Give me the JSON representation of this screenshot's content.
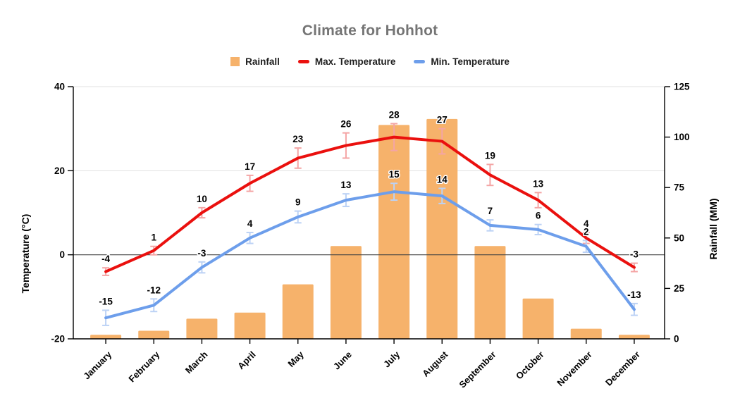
{
  "chart": {
    "title": "Climate for Hohhot",
    "title_color": "#757575",
    "legend": [
      {
        "label": "Rainfall",
        "marker": "square",
        "color": "#f6b26b"
      },
      {
        "label": "Max. Temperature",
        "marker": "line",
        "color": "#ea100e"
      },
      {
        "label": "Min. Temperature",
        "marker": "line",
        "color": "#6d9eeb"
      }
    ]
  },
  "chart_data": {
    "type": "combo",
    "title": "Climate for Hohhot",
    "categories": [
      "January",
      "February",
      "March",
      "April",
      "May",
      "June",
      "July",
      "August",
      "September",
      "October",
      "November",
      "December"
    ],
    "series": [
      {
        "name": "Rainfall",
        "type": "bar",
        "axis": "right",
        "color": "#f6b26b",
        "values": [
          2,
          4,
          10,
          13,
          27,
          46,
          106,
          109,
          46,
          20,
          5,
          2
        ]
      },
      {
        "name": "Max. Temperature",
        "type": "line",
        "axis": "left",
        "color": "#ea100e",
        "error_color": "#f4a5a5",
        "values": [
          -4,
          1,
          10,
          17,
          23,
          26,
          28,
          27,
          19,
          13,
          4,
          -3
        ],
        "errors": [
          0.9,
          1.0,
          1.2,
          1.9,
          2.4,
          3.0,
          3.2,
          3.0,
          2.5,
          1.8,
          1.3,
          1.0
        ],
        "data_labels_shown": true
      },
      {
        "name": "Min. Temperature",
        "type": "line",
        "axis": "left",
        "color": "#6d9eeb",
        "error_color": "#bcd2f5",
        "values": [
          -15,
          -12,
          -3,
          4,
          9,
          13,
          15,
          14,
          7,
          6,
          2,
          -13
        ],
        "errors": [
          1.8,
          1.5,
          1.3,
          1.3,
          1.4,
          1.5,
          2.0,
          1.8,
          1.3,
          1.2,
          1.4,
          1.4
        ],
        "data_labels_shown": true
      }
    ],
    "left_axis": {
      "title": "Temperature (°C)",
      "min": -20,
      "max": 40,
      "ticks": [
        40,
        20,
        0,
        -20
      ]
    },
    "right_axis": {
      "title": "Rainfall (MM)",
      "min": 0,
      "max": 125,
      "ticks": [
        125,
        100,
        75,
        50,
        25,
        0
      ]
    },
    "layout_hints": {
      "legend_position": "top",
      "x_labels_rotated": true,
      "grid_light_color": "#e0e0e0",
      "zero_line_color": "#424242",
      "axis_line_color": "#000000"
    }
  }
}
